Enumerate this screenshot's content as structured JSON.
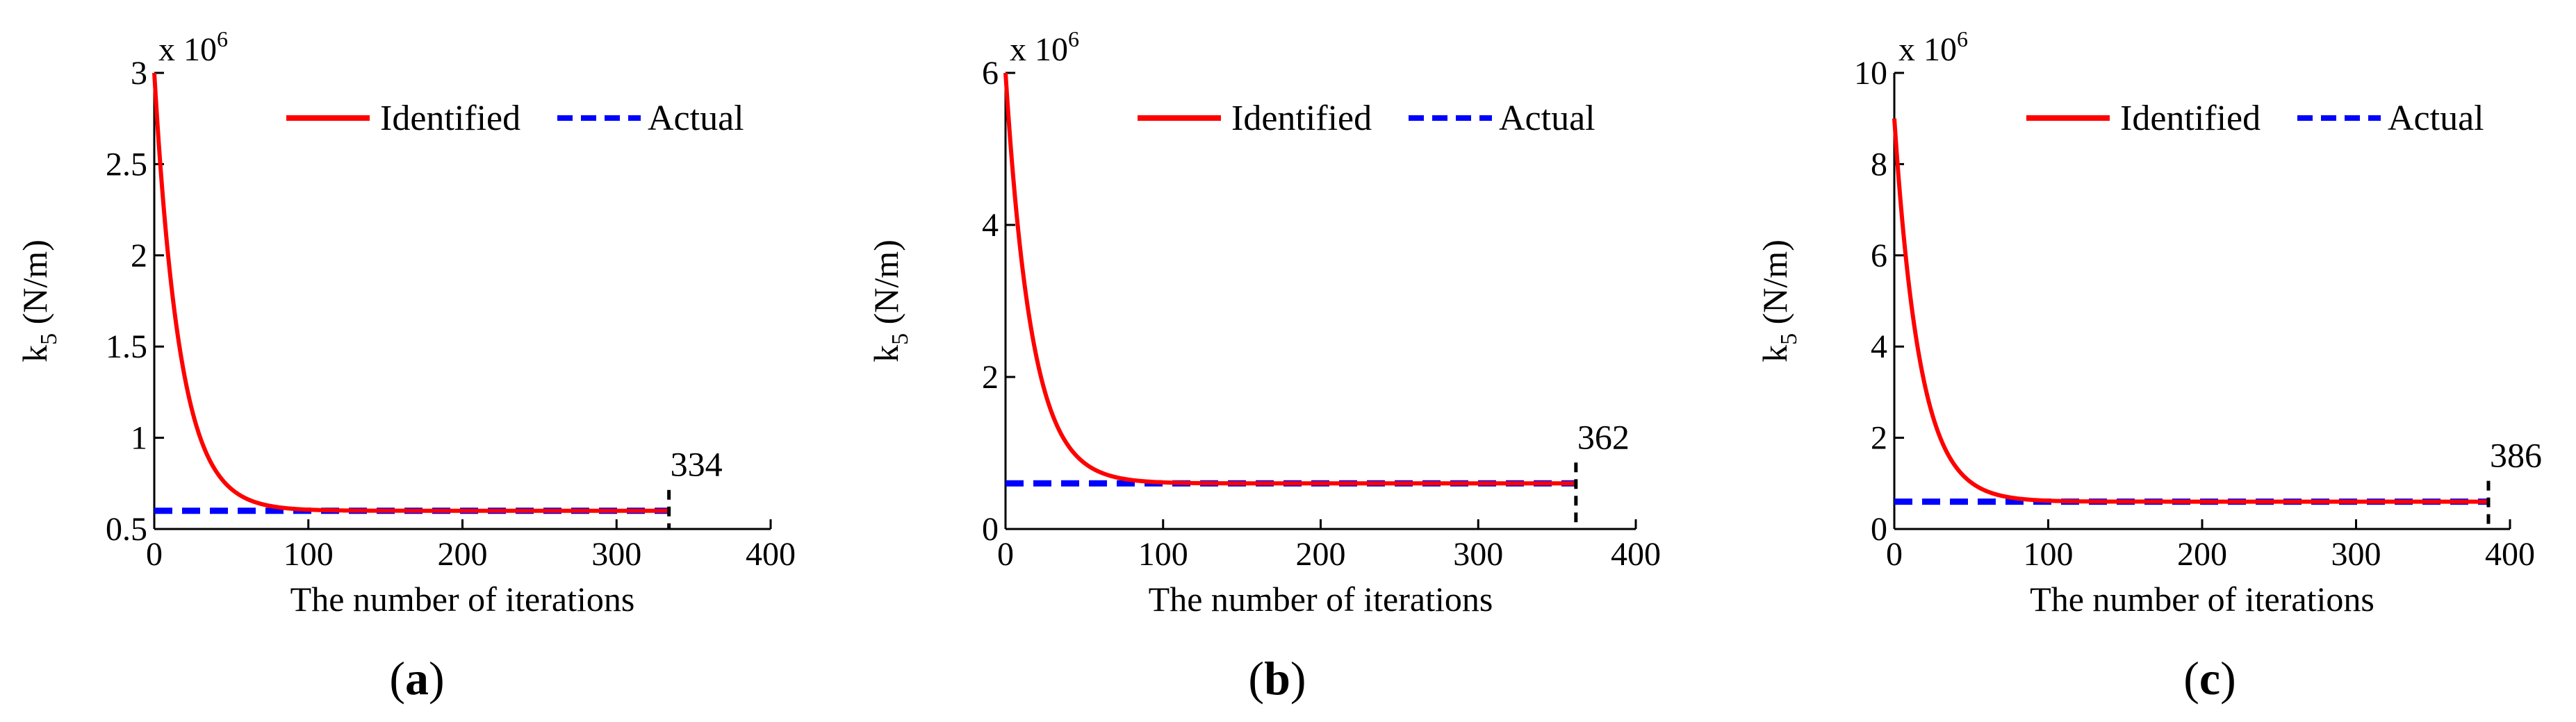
{
  "chart_data": [
    {
      "type": "line",
      "panel": "a",
      "caption_open": "(",
      "caption_letter": "a",
      "caption_close": ")",
      "xlabel": "The number of iterations",
      "ylabel_main": "k",
      "ylabel_sub": "5",
      "ylabel_unit": "(N/m)",
      "multiplier_base": "x 10",
      "multiplier_exp": "6",
      "xlim": [
        0,
        400
      ],
      "ylim": [
        0.5,
        3
      ],
      "xticks": [
        0,
        100,
        200,
        300,
        400
      ],
      "xtick_labels": [
        "0",
        "100",
        "200",
        "300",
        "400"
      ],
      "yticks": [
        0.5,
        1,
        1.5,
        2,
        2.5,
        3
      ],
      "ytick_labels": [
        "0.5",
        "1",
        "1.5",
        "2",
        "2.5",
        "3"
      ],
      "legend": [
        "Identified",
        "Actual"
      ],
      "series": [
        {
          "name": "Identified",
          "color": "#ff0000",
          "style": "solid",
          "start": 3.0,
          "final": 0.6,
          "decay": 0.06,
          "end_x": 334
        },
        {
          "name": "Actual",
          "color": "#0000ff",
          "style": "dashed",
          "value": 0.6,
          "end_x": 334
        }
      ],
      "end_marker_x": 334,
      "end_marker_label": "334"
    },
    {
      "type": "line",
      "panel": "b",
      "caption_open": "(",
      "caption_letter": "b",
      "caption_close": ")",
      "xlabel": "The number of iterations",
      "ylabel_main": "k",
      "ylabel_sub": "5",
      "ylabel_unit": "(N/m)",
      "multiplier_base": "x 10",
      "multiplier_exp": "6",
      "xlim": [
        0,
        400
      ],
      "ylim": [
        0,
        6
      ],
      "xticks": [
        0,
        100,
        200,
        300,
        400
      ],
      "xtick_labels": [
        "0",
        "100",
        "200",
        "300",
        "400"
      ],
      "yticks": [
        0,
        2,
        4,
        6
      ],
      "ytick_labels": [
        "0",
        "2",
        "4",
        "6"
      ],
      "legend": [
        "Identified",
        "Actual"
      ],
      "series": [
        {
          "name": "Identified",
          "color": "#ff0000",
          "style": "solid",
          "start": 6.0,
          "final": 0.6,
          "decay": 0.06,
          "end_x": 362
        },
        {
          "name": "Actual",
          "color": "#0000ff",
          "style": "dashed",
          "value": 0.6,
          "end_x": 362
        }
      ],
      "end_marker_x": 362,
      "end_marker_label": "362"
    },
    {
      "type": "line",
      "panel": "c",
      "caption_open": "(",
      "caption_letter": "c",
      "caption_close": ")",
      "xlabel": "The number of iterations",
      "ylabel_main": "k",
      "ylabel_sub": "5",
      "ylabel_unit": "(N/m)",
      "multiplier_base": "x 10",
      "multiplier_exp": "6",
      "xlim": [
        0,
        400
      ],
      "ylim": [
        0,
        10
      ],
      "xticks": [
        0,
        100,
        200,
        300,
        400
      ],
      "xtick_labels": [
        "0",
        "100",
        "200",
        "300",
        "400"
      ],
      "yticks": [
        0,
        2,
        4,
        6,
        8,
        10
      ],
      "ytick_labels": [
        "0",
        "2",
        "4",
        "6",
        "8",
        "10"
      ],
      "legend": [
        "Identified",
        "Actual"
      ],
      "series": [
        {
          "name": "Identified",
          "color": "#ff0000",
          "style": "solid",
          "start": 9.0,
          "final": 0.6,
          "decay": 0.06,
          "end_x": 386
        },
        {
          "name": "Actual",
          "color": "#0000ff",
          "style": "dashed",
          "value": 0.6,
          "end_x": 386
        }
      ],
      "end_marker_x": 386,
      "end_marker_label": "386"
    }
  ]
}
